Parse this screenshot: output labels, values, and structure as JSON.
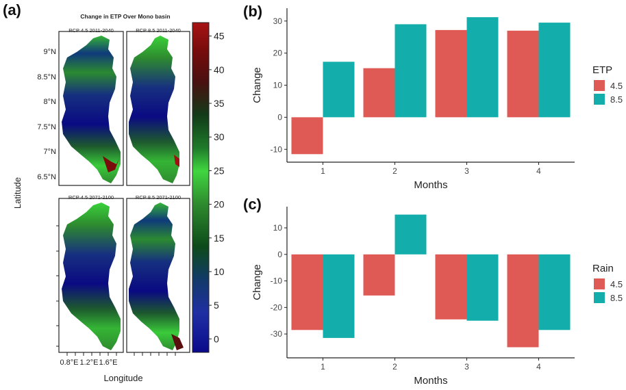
{
  "panels": {
    "a": "(a)",
    "b": "(b)",
    "c": "(c)"
  },
  "map_figure": {
    "title": "Change in ETP Over Mono basin",
    "subplot_titles": [
      "RCP 4.5 2011-2040",
      "RCP 8.5 2011-2040",
      "RCP 4.5 2071-2100",
      "RCP 8.5 2071-2100"
    ],
    "ylabel": "Latitude",
    "xlabel": "Longitude",
    "lat_ticks": [
      "9°N",
      "8.5°N",
      "8°N",
      "7.5°N",
      "7°N",
      "6.5°N"
    ],
    "lon_ticks": [
      "0.8°E",
      "1.2°E",
      "1.6°E"
    ],
    "colorbar": {
      "ticks": [
        "45",
        "40",
        "35",
        "30",
        "25",
        "20",
        "15",
        "10",
        "5",
        "0"
      ],
      "range": [
        -2,
        47
      ]
    },
    "colors": {
      "dark_blue": "#0a0a82",
      "blue": "#1d2fa0",
      "dark_green": "#0d4a1a",
      "green": "#2e8b2e",
      "bright_green": "#3ad23a",
      "dark_red": "#5a0e0e",
      "red": "#a01010"
    }
  },
  "chart_data": [
    {
      "type": "bar",
      "categories": [
        "1",
        "2",
        "3",
        "4"
      ],
      "series": [
        {
          "name": "4.5",
          "values": [
            -11.5,
            15.3,
            27.2,
            27.0
          ]
        },
        {
          "name": "8.5",
          "values": [
            17.3,
            29.0,
            31.2,
            29.5
          ]
        }
      ],
      "title": "",
      "xlabel": "Months",
      "ylabel": "Change",
      "ylim": [
        -14,
        34
      ],
      "yticks": [
        -10,
        0,
        10,
        20,
        30
      ],
      "legend_title": "ETP",
      "legend_position": "right",
      "grid": false
    },
    {
      "type": "bar",
      "categories": [
        "1",
        "2",
        "3",
        "4"
      ],
      "series": [
        {
          "name": "4.5",
          "values": [
            -28.5,
            -15.5,
            -24.5,
            -35.0
          ]
        },
        {
          "name": "8.5",
          "values": [
            -31.5,
            15.0,
            -25.0,
            -28.5
          ]
        }
      ],
      "title": "",
      "xlabel": "Months",
      "ylabel": "Change",
      "ylim": [
        -39,
        18
      ],
      "yticks": [
        -30,
        -20,
        -10,
        0,
        10
      ],
      "legend_title": "Rain",
      "legend_position": "right",
      "grid": false
    }
  ],
  "series_colors": [
    "#e05a55",
    "#13aeab"
  ]
}
